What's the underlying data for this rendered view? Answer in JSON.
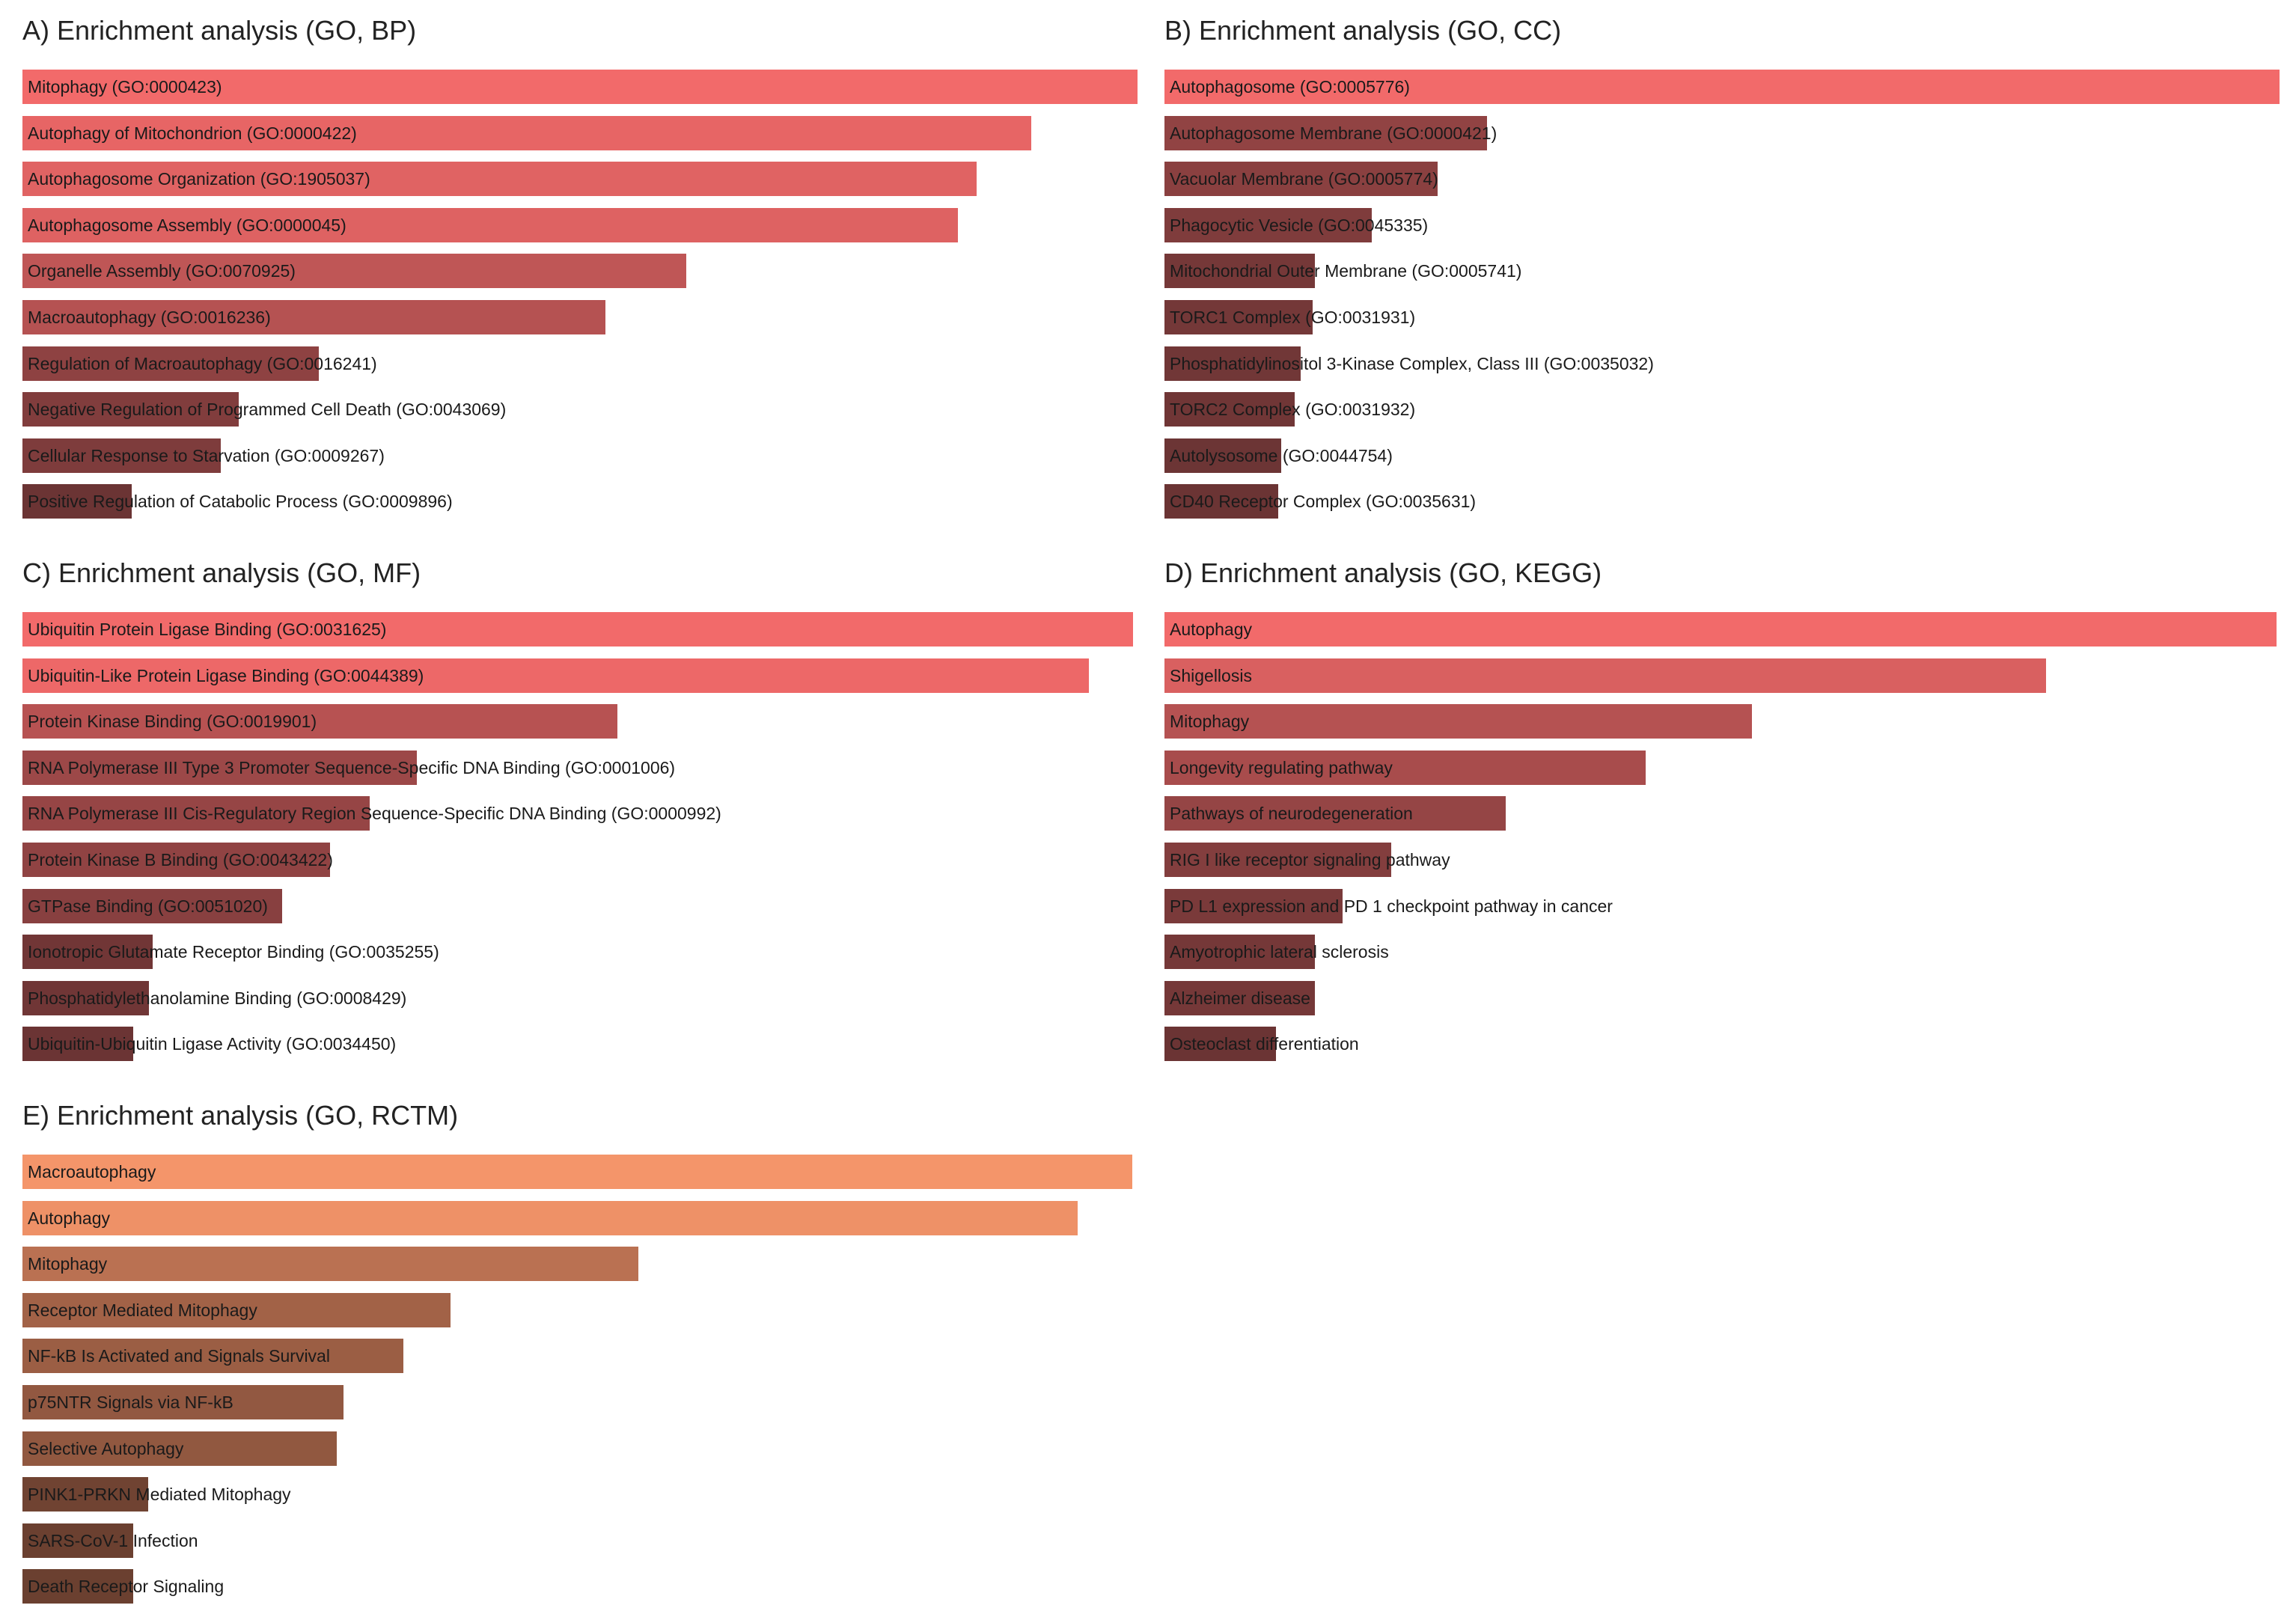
{
  "chart_data": [
    {
      "type": "bar",
      "orientation": "horizontal",
      "title": "A)   Enrichment analysis (GO, BP)",
      "categories": [
        "Mitophagy (GO:0000423)",
        "Autophagy of Mitochondrion (GO:0000422)",
        "Autophagosome Organization (GO:1905037)",
        "Autophagosome Assembly (GO:0000045)",
        "Organelle Assembly (GO:0070925)",
        "Macroautophagy (GO:0016236)",
        "Regulation of Macroautophagy (GO:0016241)",
        "Negative Regulation of Programmed Cell Death (GO:0043069)",
        "Cellular Response to Starvation (GO:0009267)",
        "Positive Regulation of Catabolic Process (GO:0009896)"
      ],
      "values": [
        1.0,
        0.905,
        0.856,
        0.839,
        0.595,
        0.523,
        0.266,
        0.194,
        0.178,
        0.098
      ],
      "color_high": "#f26a6a",
      "color_low": "#6b3434"
    },
    {
      "type": "bar",
      "orientation": "horizontal",
      "title": "B) Enrichment analysis (GO, CC)",
      "categories": [
        "Autophagosome (GO:0005776)",
        "Autophagosome Membrane (GO:0000421)",
        "Vacuolar Membrane (GO:0005774)",
        "Phagocytic Vesicle (GO:0045335)",
        "Mitochondrial Outer Membrane (GO:0005741)",
        "TORC1 Complex (GO:0031931)",
        "Phosphatidylinositol 3-Kinase Complex, Class III (GO:0035032)",
        "TORC2 Complex (GO:0031932)",
        "Autolysosome (GO:0044754)",
        "CD40 Receptor Complex (GO:0035631)"
      ],
      "values": [
        1.0,
        0.289,
        0.245,
        0.186,
        0.135,
        0.133,
        0.122,
        0.117,
        0.105,
        0.102
      ],
      "color_high": "#f26a6a",
      "color_low": "#6b3434"
    },
    {
      "type": "bar",
      "orientation": "horizontal",
      "title": "C) Enrichment analysis (GO, MF)",
      "categories": [
        "Ubiquitin Protein Ligase Binding (GO:0031625)",
        "Ubiquitin-Like Protein Ligase Binding (GO:0044389)",
        "Protein Kinase Binding (GO:0019901)",
        "RNA Polymerase III Type 3 Promoter Sequence-Specific DNA Binding (GO:0001006)",
        "RNA Polymerase III Cis-Regulatory Region Sequence-Specific DNA Binding (GO:0000992)",
        "Protein Kinase B Binding (GO:0043422)",
        "GTPase Binding (GO:0051020)",
        "Ionotropic Glutamate Receptor Binding (GO:0035255)",
        "Phosphatidylethanolamine Binding (GO:0008429)",
        "Ubiquitin-Ubiquitin Ligase Activity (GO:0034450)"
      ],
      "values": [
        1.0,
        0.96,
        0.536,
        0.355,
        0.313,
        0.277,
        0.234,
        0.117,
        0.114,
        0.1
      ],
      "color_high": "#f26a6a",
      "color_low": "#6b3434"
    },
    {
      "type": "bar",
      "orientation": "horizontal",
      "title": "D) Enrichment analysis (GO, KEGG)",
      "categories": [
        "Autophagy",
        "Shigellosis",
        "Mitophagy",
        "Longevity regulating pathway",
        "Pathways of neurodegeneration",
        "RIG I like receptor signaling pathway",
        "PD L1 expression and PD 1 checkpoint pathway in cancer",
        "Amyotrophic lateral sclerosis",
        "Alzheimer disease",
        "Osteoclast differentiation"
      ],
      "values": [
        1.0,
        0.793,
        0.528,
        0.433,
        0.307,
        0.204,
        0.16,
        0.135,
        0.135,
        0.1
      ],
      "color_high": "#f26a6a",
      "color_low": "#6b3434"
    },
    {
      "type": "bar",
      "orientation": "horizontal",
      "title": "E) Enrichment analysis (GO, RCTM)",
      "categories": [
        "Macroautophagy",
        "Autophagy",
        "Mitophagy",
        "Receptor Mediated Mitophagy",
        "NF-kB Is Activated and Signals Survival",
        "p75NTR Signals via NF-kB",
        "Selective Autophagy",
        "PINK1-PRKN Mediated Mitophagy",
        "SARS-CoV-1 Infection",
        "Death Receptor Signaling"
      ],
      "values": [
        1.0,
        0.951,
        0.555,
        0.386,
        0.343,
        0.289,
        0.283,
        0.113,
        0.1,
        0.1
      ],
      "color_high": "#f4956a",
      "color_low": "#6b4030"
    }
  ]
}
